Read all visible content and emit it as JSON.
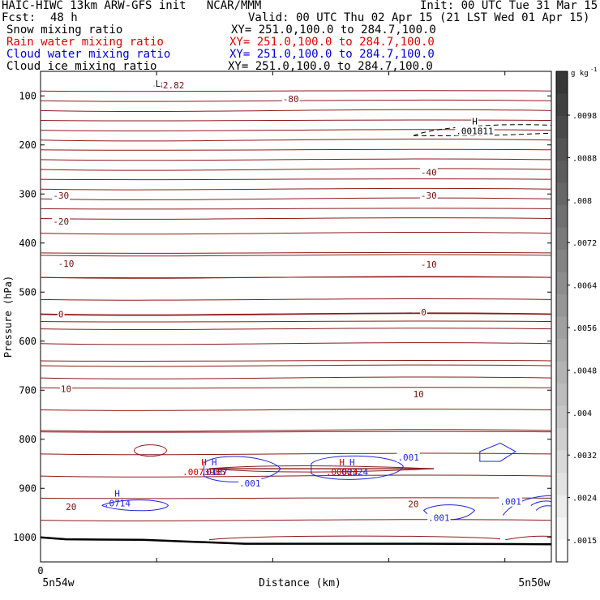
{
  "header": {
    "title": "HAIC-HIWC 13km ARW-GFS init   NCAR/MMM",
    "init": "Init: 00 UTC Tue 31 Mar 15",
    "fcst_label": "Fcst:",
    "fcst_value": "48 h",
    "valid": "Valid: 00 UTC Thu 02 Apr 15 (21 LST Wed 01 Apr 15)",
    "fields": [
      {
        "name": "Snow mixing ratio",
        "xy": "XY= 251.0,100.0 to 284.7,100.0",
        "color": "#000000"
      },
      {
        "name": "Rain water mixing ratio",
        "xy": "XY= 251.0,100.0 to 284.7,100.0",
        "color": "#e00000"
      },
      {
        "name": "Cloud water mixing ratio",
        "xy": "XY= 251.0,100.0 to 284.7,100.0",
        "color": "#0000dd"
      },
      {
        "name": "Cloud ice mixing ratio",
        "xy": "XY= 251.0,100.0 to 284.7,100.0",
        "color": "#000000"
      }
    ]
  },
  "chart_data": {
    "type": "contour-cross-section",
    "ylabel": "Pressure (hPa)",
    "xlabel": "Distance (km)",
    "y_ticks": [
      100,
      200,
      300,
      400,
      500,
      600,
      700,
      800,
      900,
      1000
    ],
    "ylim": [
      50,
      1050
    ],
    "x_ticks": [
      "0"
    ],
    "x_start_label": "5n54w",
    "x_end_label": "5n50w",
    "colorbar": {
      "unit": "g kg",
      "unit_sup": "-1",
      "ticks": [
        ".0098",
        ".0088",
        ".008",
        ".0072",
        ".0064",
        ".0056",
        ".0048",
        ".004",
        ".0032",
        ".0024",
        ".0015"
      ]
    },
    "temperature_labels": [
      {
        "text": "-82.82",
        "p": 78,
        "xf": 0.25
      },
      {
        "text": "-80",
        "p": 106,
        "xf": 0.49
      },
      {
        "text": "-40",
        "p": 256,
        "xf": 0.76
      },
      {
        "text": "-30",
        "p": 303,
        "xf": 0.04
      },
      {
        "text": "-30",
        "p": 303,
        "xf": 0.76
      },
      {
        "text": "-20",
        "p": 356,
        "xf": 0.04
      },
      {
        "text": "-10",
        "p": 442,
        "xf": 0.05
      },
      {
        "text": "-10",
        "p": 443,
        "xf": 0.76
      },
      {
        "text": "0",
        "p": 545,
        "xf": 0.04
      },
      {
        "text": "0",
        "p": 541,
        "xf": 0.75
      },
      {
        "text": "10",
        "p": 697,
        "xf": 0.05
      },
      {
        "text": "10",
        "p": 708,
        "xf": 0.74
      },
      {
        "text": "20",
        "p": 938,
        "xf": 0.06
      },
      {
        "text": "20",
        "p": 932,
        "xf": 0.73
      }
    ],
    "low_marker": {
      "text": "L",
      "p": 75,
      "xf": 0.23
    },
    "ice_max": {
      "h": "H",
      "value": ".001811",
      "p": 168,
      "xf": 0.85
    },
    "cloud_water_labels": [
      {
        "text": ".001",
        "p": 837,
        "xf": 0.72
      },
      {
        "text": ".001",
        "p": 890,
        "xf": 0.41
      },
      {
        "text": ".001",
        "p": 927,
        "xf": 0.92
      },
      {
        "text": ".001",
        "p": 960,
        "xf": 0.78
      }
    ],
    "cloud_water_max": [
      {
        "h": "H",
        "value": ".0714",
        "p": 920,
        "xf": 0.15
      },
      {
        "h": "H",
        "value": ".0187",
        "p": 857,
        "xf": 0.34
      },
      {
        "h": "H",
        "value": ".00324",
        "p": 857,
        "xf": 0.61
      }
    ],
    "rain_max": [
      {
        "h": "H",
        "value": ".0073985",
        "p": 857,
        "xf": 0.32
      },
      {
        "h": "H",
        "value": ".00024",
        "p": 857,
        "xf": 0.59
      }
    ]
  }
}
